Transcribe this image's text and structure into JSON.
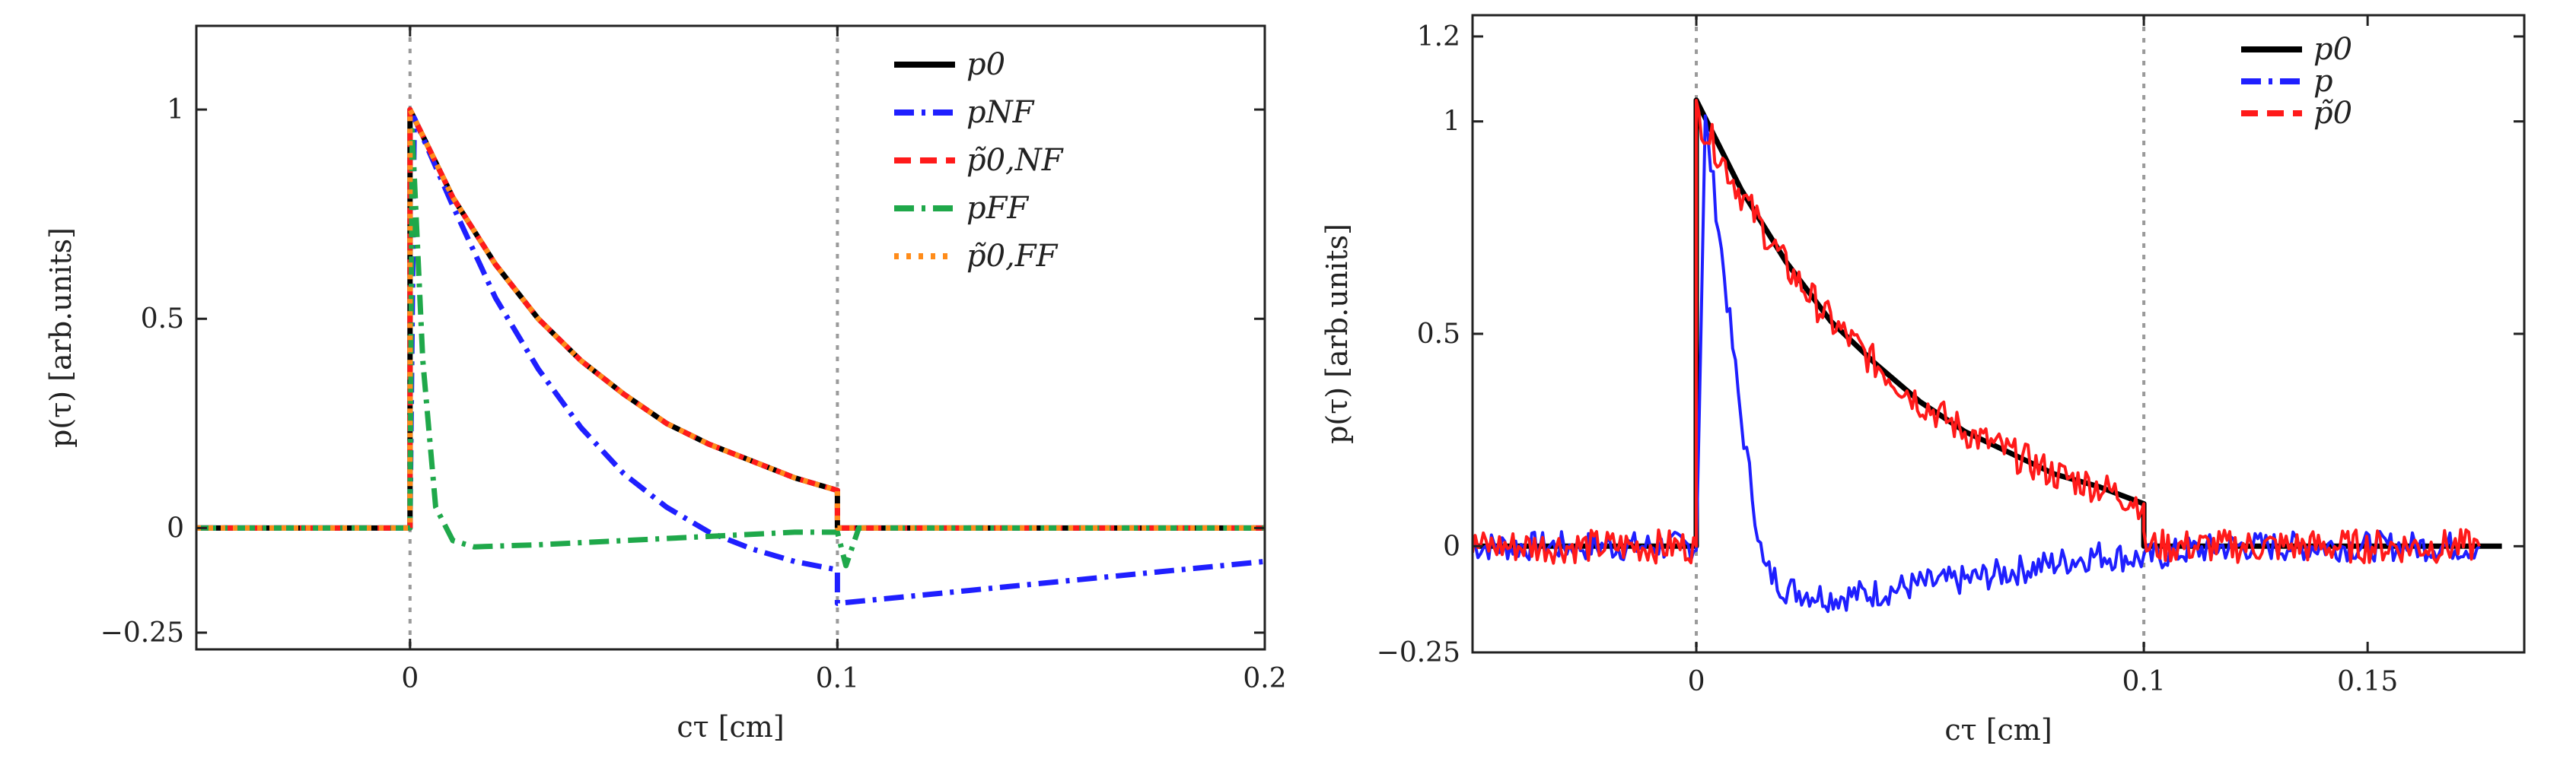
{
  "chart_data": [
    {
      "type": "line",
      "title": "",
      "xlabel": "cτ [cm]",
      "ylabel": "p(τ) [arb.units]",
      "xlim": [
        -0.05,
        0.2
      ],
      "ylim": [
        -0.29,
        1.2
      ],
      "xticks": [
        0,
        0.1,
        0.2
      ],
      "xtick_labels": [
        "0",
        "0.1",
        "0.2"
      ],
      "yticks": [
        -0.25,
        0,
        0.5,
        1
      ],
      "ytick_labels": [
        "−0.25",
        "0",
        "0.5",
        "1"
      ],
      "vlines": [
        0,
        0.1
      ],
      "legend_position": "top-right",
      "legend": [
        "p0",
        "pNF",
        "p̃0,NF",
        "pFF",
        "p̃0,FF"
      ],
      "series": [
        {
          "name": "p0",
          "color": "#000000",
          "style": "solid",
          "x": [
            -0.05,
            0,
            0,
            0.01,
            0.02,
            0.03,
            0.04,
            0.05,
            0.06,
            0.07,
            0.08,
            0.09,
            0.1,
            0.1,
            0.2
          ],
          "y": [
            0,
            0,
            1.0,
            0.79,
            0.63,
            0.5,
            0.4,
            0.32,
            0.25,
            0.2,
            0.16,
            0.12,
            0.09,
            0,
            0
          ]
        },
        {
          "name": "pNF",
          "color": "#1f1fff",
          "style": "dashdot",
          "x": [
            -0.05,
            0,
            0.001,
            0.01,
            0.02,
            0.03,
            0.04,
            0.05,
            0.06,
            0.07,
            0.08,
            0.09,
            0.1,
            0.1,
            0.12,
            0.14,
            0.16,
            0.18,
            0.2
          ],
          "y": [
            0,
            0,
            0.98,
            0.77,
            0.55,
            0.38,
            0.24,
            0.13,
            0.05,
            -0.01,
            -0.05,
            -0.08,
            -0.1,
            -0.18,
            -0.16,
            -0.14,
            -0.12,
            -0.1,
            -0.08
          ]
        },
        {
          "name": "p̃0,NF",
          "color": "#ff1a1a",
          "style": "dashed",
          "x": [
            -0.05,
            0,
            0,
            0.01,
            0.02,
            0.03,
            0.04,
            0.05,
            0.06,
            0.07,
            0.08,
            0.09,
            0.1,
            0.1,
            0.2
          ],
          "y": [
            0,
            0,
            1.0,
            0.79,
            0.63,
            0.5,
            0.4,
            0.32,
            0.25,
            0.2,
            0.16,
            0.12,
            0.09,
            0,
            0
          ]
        },
        {
          "name": "pFF",
          "color": "#1fa84a",
          "style": "dashdot",
          "x": [
            -0.05,
            0,
            0.0005,
            0.003,
            0.006,
            0.01,
            0.015,
            0.03,
            0.05,
            0.07,
            0.09,
            0.1,
            0.102,
            0.105,
            0.2
          ],
          "y": [
            0,
            0,
            0.95,
            0.4,
            0.05,
            -0.03,
            -0.045,
            -0.04,
            -0.03,
            -0.02,
            -0.01,
            -0.01,
            -0.09,
            0,
            0
          ]
        },
        {
          "name": "p̃0,FF",
          "color": "#ff8c1a",
          "style": "dotted",
          "x": [
            -0.05,
            0,
            0,
            0.01,
            0.02,
            0.03,
            0.04,
            0.05,
            0.06,
            0.07,
            0.08,
            0.09,
            0.1,
            0.1,
            0.2
          ],
          "y": [
            0,
            0,
            1.0,
            0.79,
            0.63,
            0.5,
            0.4,
            0.32,
            0.25,
            0.2,
            0.16,
            0.12,
            0.09,
            0,
            0
          ]
        }
      ]
    },
    {
      "type": "line",
      "title": "",
      "xlabel": "cτ [cm]",
      "ylabel": "p(τ) [arb.units]",
      "xlim": [
        -0.05,
        0.185
      ],
      "ylim": [
        -0.25,
        1.25
      ],
      "xticks": [
        0,
        0.1,
        0.15
      ],
      "xtick_labels": [
        "0",
        "0.1",
        "0.15"
      ],
      "yticks": [
        -0.25,
        0,
        0.5,
        1,
        1.2
      ],
      "ytick_labels": [
        "−0.25",
        "0",
        "0.5",
        "1",
        "1.2"
      ],
      "vlines": [
        0,
        0.1
      ],
      "legend_position": "top-right",
      "legend": [
        "p0",
        "p",
        "p̃0"
      ],
      "series": [
        {
          "name": "p0",
          "color": "#000000",
          "style": "solid",
          "x": [
            -0.05,
            0,
            0,
            0.01,
            0.02,
            0.03,
            0.04,
            0.05,
            0.06,
            0.07,
            0.08,
            0.09,
            0.1,
            0.1,
            0.18
          ],
          "y": [
            0,
            0,
            1.05,
            0.84,
            0.67,
            0.53,
            0.43,
            0.34,
            0.27,
            0.22,
            0.17,
            0.14,
            0.1,
            0,
            0
          ]
        },
        {
          "name": "p",
          "color": "#1f1fff",
          "style": "dashdot",
          "noise": 0.035,
          "x": [
            -0.05,
            0,
            0.002,
            0.005,
            0.01,
            0.015,
            0.02,
            0.03,
            0.04,
            0.05,
            0.06,
            0.07,
            0.08,
            0.09,
            0.1,
            0.11,
            0.12,
            0.14,
            0.16,
            0.175
          ],
          "y": [
            0,
            0,
            1.0,
            0.75,
            0.3,
            -0.05,
            -0.1,
            -0.12,
            -0.11,
            -0.09,
            -0.08,
            -0.06,
            -0.04,
            -0.02,
            -0.03,
            -0.01,
            0.0,
            0.0,
            0.0,
            0.0
          ]
        },
        {
          "name": "p̃0",
          "color": "#ff1a1a",
          "style": "dashed",
          "noise": 0.04,
          "x": [
            -0.05,
            0,
            0,
            0.01,
            0.02,
            0.03,
            0.04,
            0.05,
            0.06,
            0.07,
            0.08,
            0.09,
            0.1,
            0.1,
            0.175
          ],
          "y": [
            0,
            0,
            1.02,
            0.83,
            0.66,
            0.53,
            0.43,
            0.34,
            0.27,
            0.22,
            0.17,
            0.14,
            0.1,
            0,
            0
          ]
        }
      ]
    }
  ]
}
